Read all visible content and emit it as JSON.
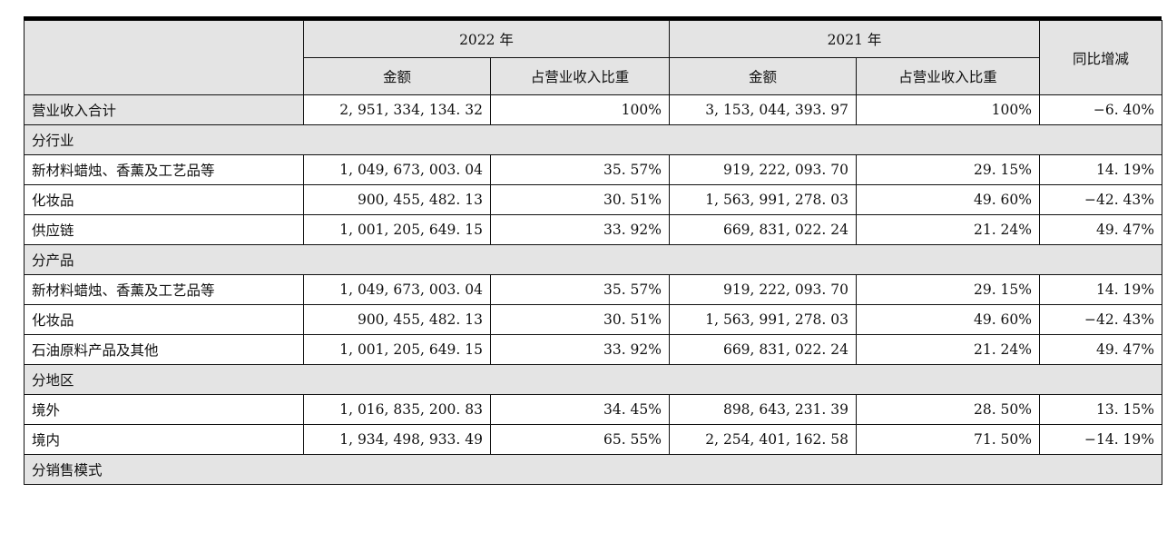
{
  "header": {
    "year_2022": "2022 年",
    "year_2021": "2021 年",
    "amount": "金额",
    "share": "占营业收入比重",
    "yoy": "同比增减"
  },
  "total": {
    "label": "营业收入合计",
    "amt2022": "2, 951, 334, 134. 32",
    "pct2022": "100%",
    "amt2021": "3, 153, 044, 393. 97",
    "pct2021": "100%",
    "yoy": "−6. 40%"
  },
  "sections": [
    {
      "title": "分行业",
      "rows": [
        {
          "label": "新材料蜡烛、香薰及工艺品等",
          "amt2022": "1, 049, 673, 003. 04",
          "pct2022": "35. 57%",
          "amt2021": "919, 222, 093. 70",
          "pct2021": "29. 15%",
          "yoy": "14. 19%"
        },
        {
          "label": "化妆品",
          "amt2022": "900, 455, 482. 13",
          "pct2022": "30. 51%",
          "amt2021": "1, 563, 991, 278. 03",
          "pct2021": "49. 60%",
          "yoy": "−42. 43%"
        },
        {
          "label": "供应链",
          "amt2022": "1, 001, 205, 649. 15",
          "pct2022": "33. 92%",
          "amt2021": "669, 831, 022. 24",
          "pct2021": "21. 24%",
          "yoy": "49. 47%"
        }
      ]
    },
    {
      "title": "分产品",
      "rows": [
        {
          "label": "新材料蜡烛、香薰及工艺品等",
          "amt2022": "1, 049, 673, 003. 04",
          "pct2022": "35. 57%",
          "amt2021": "919, 222, 093. 70",
          "pct2021": "29. 15%",
          "yoy": "14. 19%"
        },
        {
          "label": "化妆品",
          "amt2022": "900, 455, 482. 13",
          "pct2022": "30. 51%",
          "amt2021": "1, 563, 991, 278. 03",
          "pct2021": "49. 60%",
          "yoy": "−42. 43%"
        },
        {
          "label": "石油原料产品及其他",
          "amt2022": "1, 001, 205, 649. 15",
          "pct2022": "33. 92%",
          "amt2021": "669, 831, 022. 24",
          "pct2021": "21. 24%",
          "yoy": "49. 47%"
        }
      ]
    },
    {
      "title": "分地区",
      "rows": [
        {
          "label": "境外",
          "amt2022": "1, 016, 835, 200. 83",
          "pct2022": "34. 45%",
          "amt2021": "898, 643, 231. 39",
          "pct2021": "28. 50%",
          "yoy": "13. 15%"
        },
        {
          "label": "境内",
          "amt2022": "1, 934, 498, 933. 49",
          "pct2022": "65. 55%",
          "amt2021": "2, 254, 401, 162. 58",
          "pct2021": "71. 50%",
          "yoy": "−14. 19%"
        }
      ]
    },
    {
      "title": "分销售模式",
      "rows": []
    }
  ]
}
